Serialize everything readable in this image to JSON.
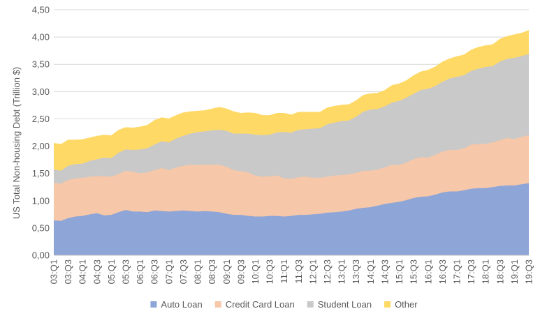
{
  "chart_data": {
    "type": "area",
    "stacked": true,
    "title": "",
    "ylabel": "US Total Non-housing Debt (Trillion $)",
    "xlabel": "",
    "ylim": [
      0,
      4.5
    ],
    "yticks": [
      "0,00",
      "0,50",
      "1,00",
      "1,50",
      "2,00",
      "2,50",
      "3,00",
      "3,50",
      "4,00",
      "4,50"
    ],
    "ytick_values": [
      0,
      0.5,
      1.0,
      1.5,
      2.0,
      2.5,
      3.0,
      3.5,
      4.0,
      4.5
    ],
    "grid": true,
    "legend_position": "bottom",
    "categories": [
      "03:Q1",
      "03:Q2",
      "03:Q3",
      "03:Q4",
      "04:Q1",
      "04:Q2",
      "04:Q3",
      "04:Q4",
      "05:Q1",
      "05:Q2",
      "05:Q3",
      "05:Q4",
      "06:Q1",
      "06:Q2",
      "06:Q3",
      "06:Q4",
      "07:Q1",
      "07:Q2",
      "07:Q3",
      "07:Q4",
      "08:Q1",
      "08:Q2",
      "08:Q3",
      "08:Q4",
      "09:Q1",
      "09:Q2",
      "09:Q3",
      "09:Q4",
      "10:Q1",
      "10:Q2",
      "10:Q3",
      "10:Q4",
      "11:Q1",
      "11:Q2",
      "11:Q3",
      "11:Q4",
      "12:Q1",
      "12:Q2",
      "12:Q3",
      "12:Q4",
      "13:Q1",
      "13:Q2",
      "13:Q3",
      "13:Q4",
      "14:Q1",
      "14:Q2",
      "14:Q3",
      "14:Q4",
      "15:Q1",
      "15:Q2",
      "15:Q3",
      "15:Q4",
      "16:Q1",
      "16:Q2",
      "16:Q3",
      "16:Q4",
      "17:Q1",
      "17:Q2",
      "17:Q3",
      "17:Q4",
      "18:Q1",
      "18:Q2",
      "18:Q3",
      "18:Q4",
      "19:Q1",
      "19:Q2",
      "19:Q3"
    ],
    "visible_tick_labels": [
      "03:Q1",
      "03:Q3",
      "04:Q1",
      "04:Q3",
      "05:Q1",
      "05:Q3",
      "06:Q1",
      "06:Q3",
      "07:Q1",
      "07:Q3",
      "08:Q1",
      "08:Q3",
      "09:Q1",
      "09:Q3",
      "10:Q1",
      "10:Q3",
      "11:Q1",
      "11:Q3",
      "12:Q1",
      "12:Q3",
      "13:Q1",
      "13:Q3",
      "14:Q1",
      "14:Q3",
      "15:Q1",
      "15:Q3",
      "16:Q1",
      "16:Q3",
      "17:Q1",
      "17:Q3",
      "18:Q1",
      "18:Q3",
      "19:Q1",
      "19:Q3"
    ],
    "series": [
      {
        "name": "Auto Loan",
        "color": "#8ea5d8",
        "values": [
          0.64,
          0.63,
          0.68,
          0.71,
          0.72,
          0.75,
          0.77,
          0.73,
          0.74,
          0.79,
          0.83,
          0.8,
          0.8,
          0.79,
          0.82,
          0.81,
          0.8,
          0.81,
          0.82,
          0.81,
          0.8,
          0.81,
          0.8,
          0.79,
          0.76,
          0.74,
          0.74,
          0.72,
          0.71,
          0.71,
          0.72,
          0.72,
          0.71,
          0.72,
          0.74,
          0.74,
          0.75,
          0.76,
          0.78,
          0.79,
          0.8,
          0.82,
          0.85,
          0.87,
          0.88,
          0.91,
          0.94,
          0.96,
          0.98,
          1.01,
          1.05,
          1.07,
          1.08,
          1.11,
          1.15,
          1.17,
          1.17,
          1.19,
          1.22,
          1.23,
          1.23,
          1.25,
          1.27,
          1.28,
          1.28,
          1.3,
          1.32
        ]
      },
      {
        "name": "Credit Card Loan",
        "color": "#f6c7a8",
        "values": [
          0.69,
          0.68,
          0.7,
          0.7,
          0.7,
          0.69,
          0.68,
          0.72,
          0.7,
          0.7,
          0.72,
          0.73,
          0.7,
          0.73,
          0.74,
          0.79,
          0.76,
          0.8,
          0.82,
          0.85,
          0.85,
          0.85,
          0.86,
          0.87,
          0.86,
          0.82,
          0.8,
          0.8,
          0.75,
          0.73,
          0.73,
          0.74,
          0.7,
          0.68,
          0.69,
          0.7,
          0.67,
          0.66,
          0.66,
          0.67,
          0.67,
          0.66,
          0.66,
          0.68,
          0.67,
          0.66,
          0.67,
          0.7,
          0.67,
          0.69,
          0.71,
          0.73,
          0.71,
          0.73,
          0.75,
          0.76,
          0.76,
          0.77,
          0.81,
          0.81,
          0.81,
          0.82,
          0.84,
          0.87,
          0.85,
          0.87,
          0.88
        ]
      },
      {
        "name": "Student Loan",
        "color": "#c9c9c9",
        "values": [
          0.24,
          0.24,
          0.26,
          0.26,
          0.26,
          0.29,
          0.31,
          0.34,
          0.34,
          0.39,
          0.39,
          0.4,
          0.44,
          0.44,
          0.47,
          0.49,
          0.51,
          0.53,
          0.55,
          0.57,
          0.61,
          0.61,
          0.63,
          0.64,
          0.66,
          0.67,
          0.69,
          0.71,
          0.75,
          0.76,
          0.76,
          0.79,
          0.85,
          0.85,
          0.87,
          0.87,
          0.9,
          0.91,
          0.96,
          0.97,
          0.99,
          0.99,
          1.03,
          1.08,
          1.12,
          1.11,
          1.12,
          1.14,
          1.18,
          1.19,
          1.2,
          1.23,
          1.26,
          1.26,
          1.28,
          1.31,
          1.34,
          1.34,
          1.35,
          1.38,
          1.41,
          1.4,
          1.44,
          1.45,
          1.49,
          1.48,
          1.49
        ]
      },
      {
        "name": "Other",
        "color": "#ffd966",
        "values": [
          0.48,
          0.48,
          0.47,
          0.44,
          0.44,
          0.42,
          0.42,
          0.41,
          0.41,
          0.41,
          0.4,
          0.4,
          0.41,
          0.42,
          0.44,
          0.43,
          0.43,
          0.42,
          0.42,
          0.4,
          0.38,
          0.38,
          0.39,
          0.41,
          0.4,
          0.4,
          0.37,
          0.38,
          0.39,
          0.36,
          0.35,
          0.35,
          0.34,
          0.32,
          0.32,
          0.31,
          0.3,
          0.29,
          0.3,
          0.3,
          0.29,
          0.29,
          0.29,
          0.3,
          0.29,
          0.29,
          0.29,
          0.31,
          0.31,
          0.31,
          0.33,
          0.33,
          0.34,
          0.35,
          0.36,
          0.36,
          0.37,
          0.37,
          0.38,
          0.39,
          0.39,
          0.39,
          0.41,
          0.41,
          0.42,
          0.42,
          0.43
        ]
      }
    ]
  }
}
